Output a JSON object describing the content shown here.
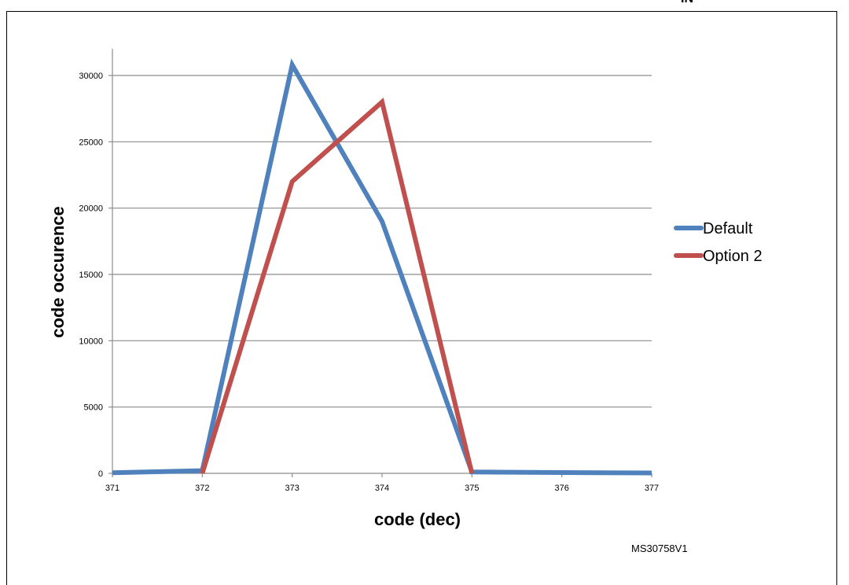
{
  "figure_id": "MS30758V1",
  "top_fragment": "IN",
  "chart_data": {
    "type": "line",
    "title": "",
    "xlabel": "code (dec)",
    "ylabel": "code occurence",
    "x": [
      371,
      372,
      373,
      374,
      375,
      376,
      377
    ],
    "xlim": [
      371,
      377
    ],
    "ylim": [
      0,
      30000
    ],
    "y_ticks": [
      0,
      5000,
      10000,
      15000,
      20000,
      25000,
      30000
    ],
    "x_ticks": [
      371,
      372,
      373,
      374,
      375,
      376,
      377
    ],
    "grid": "horizontal",
    "legend_position": "right",
    "series": [
      {
        "name": "Default",
        "color": "#4f81bd",
        "x": [
          371,
          372,
          373,
          374,
          375,
          376,
          377
        ],
        "values": [
          50,
          200,
          30800,
          19000,
          100,
          60,
          30
        ]
      },
      {
        "name": "Option 2",
        "color": "#c0504d",
        "x": [
          372,
          373,
          374,
          375
        ],
        "values": [
          0,
          22000,
          28000,
          0
        ]
      }
    ]
  }
}
